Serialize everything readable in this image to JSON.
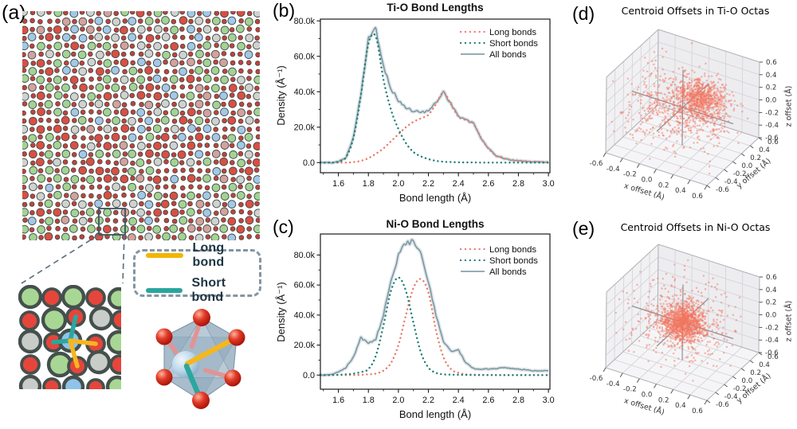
{
  "figure": {
    "panels": {
      "a": {
        "label": "(a)",
        "lattice": {
          "seed": 7,
          "outline": "#3f4a45",
          "oxygen_color": "#c2423c",
          "palette": {
            "green": "#a3d393",
            "red": "#d94f44",
            "gray": "#cfd2cf",
            "blue": "#a3c8e8",
            "pink": "#d3a29e"
          },
          "weights": {
            "green": 0.4,
            "red": 0.22,
            "gray": 0.16,
            "blue": 0.12,
            "pink": 0.1
          }
        },
        "annotations": {
          "zoom_box_color": "#3d545c",
          "connector_color": "#5f7380"
        },
        "inset": {
          "outline": "#45504d",
          "colors": {
            "green": "#a8d795",
            "red": "#e6453c",
            "gray": "#c9cdca",
            "blue": "#8fc3e8"
          },
          "atoms": [
            [
              15,
              15,
              13,
              "green"
            ],
            [
              42,
              16,
              11,
              "red"
            ],
            [
              69,
              15,
              13,
              "green"
            ],
            [
              97,
              16,
              11,
              "red"
            ],
            [
              126,
              17,
              12,
              "green"
            ],
            [
              14,
              45,
              11,
              "red"
            ],
            [
              45,
              44,
              14,
              "green"
            ],
            [
              72,
              40,
              11,
              "red"
            ],
            [
              104,
              42,
              13,
              "gray"
            ],
            [
              129,
              44,
              11,
              "red"
            ],
            [
              15,
              71,
              13,
              "gray"
            ],
            [
              44,
              72,
              11,
              "red"
            ],
            [
              65,
              70,
              13,
              "blue"
            ],
            [
              97,
              74,
              11,
              "red"
            ],
            [
              126,
              72,
              13,
              "green"
            ],
            [
              15,
              100,
              11,
              "red"
            ],
            [
              52,
              100,
              14,
              "green"
            ],
            [
              74,
              102,
              11,
              "red"
            ],
            [
              101,
              97,
              13,
              "gray"
            ],
            [
              127,
              100,
              11,
              "red"
            ],
            [
              15,
              127,
              12,
              "gray"
            ],
            [
              42,
              128,
              10,
              "red"
            ],
            [
              69,
              128,
              12,
              "blue"
            ],
            [
              97,
              129,
              10,
              "red"
            ],
            [
              124,
              128,
              12,
              "green"
            ]
          ],
          "bonds": {
            "short": {
              "color": "#2aa79e",
              "segments": [
                [
                  65,
                  70,
                  72,
                  40
                ],
                [
                  65,
                  70,
                  44,
                  72
                ]
              ]
            },
            "long": {
              "color": "#f4b71e",
              "segments": [
                [
                  65,
                  70,
                  97,
                  74
                ],
                [
                  65,
                  70,
                  74,
                  102
                ]
              ]
            }
          }
        },
        "legend": {
          "items": [
            {
              "label": "Long bond",
              "color": "#f2b600"
            },
            {
              "label": "Short bond",
              "color": "#29a69e"
            }
          ]
        },
        "octahedron": {
          "face_color": "#a9bccb",
          "face_light": "#c6d4df",
          "face_dark": "#8aa5bb",
          "edge_color": "#7490a6",
          "vertex_color": "#e03c28",
          "center_color": "#bcd7ea",
          "stick_pink": "#e29394",
          "stick_blue": "#a9c7e0",
          "long_bond": "#f4b71e",
          "short_bond": "#2aa79e"
        }
      },
      "b": {
        "label": "(b)"
      },
      "c": {
        "label": "(c)"
      },
      "d": {
        "label": "(d)"
      },
      "e": {
        "label": "(e)"
      }
    }
  },
  "chart_data": [
    {
      "id": "b",
      "type": "line",
      "title": "Ti-O Bond Lengths",
      "xlabel": "Bond length (Å)",
      "ylabel": "Density (Å⁻¹)",
      "xlim": [
        1.48,
        3.01
      ],
      "ylim": [
        -5700,
        81000
      ],
      "grid": false,
      "legend_position": "upper right",
      "xticks": [
        1.6,
        1.8,
        2.0,
        2.2,
        2.4,
        2.6,
        2.8,
        3.0
      ],
      "xtick_labels": [
        "1.6",
        "1.8",
        "2.0",
        "2.2",
        "2.4",
        "2.6",
        "2.8",
        "3.0"
      ],
      "yticks": [
        0,
        20000,
        40000,
        60000,
        80000
      ],
      "ytick_labels": [
        "0.0",
        "20.0k",
        "40.0k",
        "60.0k",
        "80.0k"
      ],
      "x": [
        1.5,
        1.55,
        1.6,
        1.65,
        1.7,
        1.75,
        1.8,
        1.85,
        1.9,
        1.95,
        2.0,
        2.05,
        2.1,
        2.15,
        2.2,
        2.25,
        2.3,
        2.35,
        2.4,
        2.45,
        2.5,
        2.55,
        2.6,
        2.65,
        2.7,
        2.75,
        2.8,
        2.85,
        2.9,
        2.95,
        3.0
      ],
      "series": [
        {
          "name": "Long bonds",
          "style": "dotted",
          "color": "#e87c6a",
          "values": [
            0,
            0,
            0,
            0,
            300,
            1000,
            2500,
            5000,
            8000,
            12000,
            16000,
            20000,
            23000,
            25000,
            27000,
            33000,
            39500,
            33000,
            26000,
            24000,
            22000,
            14000,
            8000,
            4000,
            2500,
            1500,
            1000,
            800,
            500,
            400,
            300
          ]
        },
        {
          "name": "Short bonds",
          "style": "dotted",
          "color": "#1f7f78",
          "values": [
            0,
            0,
            500,
            3000,
            14000,
            38000,
            67000,
            71000,
            47000,
            30000,
            19000,
            11000,
            6000,
            3500,
            2000,
            1000,
            500,
            300,
            200,
            100,
            100,
            0,
            0,
            0,
            0,
            0,
            0,
            0,
            0,
            0,
            0
          ]
        },
        {
          "name": "All bonds",
          "style": "solid",
          "color": "#74909e",
          "band_color": "#a9b9c2",
          "values": [
            0,
            0,
            500,
            3000,
            14300,
            39000,
            69500,
            75500,
            55000,
            42000,
            35000,
            31000,
            29000,
            28500,
            29000,
            34000,
            40000,
            33300,
            26200,
            24100,
            22100,
            14000,
            8000,
            4000,
            2500,
            1500,
            1000,
            800,
            500,
            400,
            300
          ]
        }
      ]
    },
    {
      "id": "c",
      "type": "line",
      "title": "Ni-O Bond Lengths",
      "xlabel": "Bond length (Å)",
      "ylabel": "Density (Å⁻¹)",
      "xlim": [
        1.48,
        3.01
      ],
      "ylim": [
        -9400,
        94000
      ],
      "grid": false,
      "legend_position": "upper right",
      "xticks": [
        1.6,
        1.8,
        2.0,
        2.2,
        2.4,
        2.6,
        2.8,
        3.0
      ],
      "xtick_labels": [
        "1.6",
        "1.8",
        "2.0",
        "2.2",
        "2.4",
        "2.6",
        "2.8",
        "3.0"
      ],
      "yticks": [
        0,
        20000,
        40000,
        60000,
        80000
      ],
      "ytick_labels": [
        "0.0",
        "20.0k",
        "40.0k",
        "60.0k",
        "80.0k"
      ],
      "x": [
        1.5,
        1.55,
        1.6,
        1.65,
        1.7,
        1.75,
        1.8,
        1.85,
        1.9,
        1.95,
        2.0,
        2.05,
        2.1,
        2.15,
        2.2,
        2.25,
        2.3,
        2.35,
        2.4,
        2.45,
        2.5,
        2.55,
        2.6,
        2.65,
        2.7,
        2.75,
        2.8,
        2.85,
        2.9,
        2.95,
        3.0
      ],
      "series": [
        {
          "name": "Long bonds",
          "style": "dotted",
          "color": "#e87c6a",
          "values": [
            0,
            0,
            0,
            0,
            0,
            200,
            500,
            1000,
            3000,
            8000,
            20000,
            40000,
            58000,
            64000,
            55000,
            30000,
            12000,
            4000,
            1500,
            500,
            300,
            200,
            100,
            0,
            0,
            0,
            0,
            0,
            0,
            0,
            0
          ]
        },
        {
          "name": "Short bonds",
          "style": "dotted",
          "color": "#1f7f78",
          "values": [
            0,
            0,
            200,
            500,
            1000,
            2000,
            4000,
            13000,
            33000,
            56000,
            65000,
            56000,
            35000,
            15000,
            5000,
            1500,
            500,
            300,
            200,
            100,
            0,
            0,
            0,
            0,
            0,
            0,
            0,
            0,
            0,
            0,
            0
          ]
        },
        {
          "name": "All bonds",
          "style": "solid",
          "color": "#74909e",
          "band_color": "#a9b9c2",
          "values": [
            0,
            500,
            2000,
            5000,
            12000,
            25000,
            21000,
            24000,
            40000,
            62000,
            80000,
            88000,
            89000,
            80000,
            62000,
            40000,
            22000,
            16000,
            16500,
            8000,
            4500,
            4000,
            4000,
            4500,
            5000,
            4500,
            4000,
            3500,
            3000,
            3000,
            3000
          ]
        }
      ]
    },
    {
      "id": "d",
      "type": "scatter3d",
      "title": "Centroid Offsets in Ti-O Octas",
      "xlabel": "x offset (Å)",
      "ylabel": "y offset (Å)",
      "zlabel": "z offset (Å)",
      "xlim": [
        -0.6,
        0.6
      ],
      "ylim": [
        -0.6,
        0.6
      ],
      "zlim": [
        -0.6,
        0.6
      ],
      "ticks": [
        -0.6,
        -0.4,
        -0.2,
        0.0,
        0.2,
        0.4,
        0.6
      ],
      "tick_labels": [
        "-0.6",
        "-0.4",
        "-0.2",
        "0.0",
        "0.2",
        "0.4",
        "0.6"
      ],
      "point_color": "#f4765f",
      "seed": 11,
      "clusters": [
        {
          "n": 700,
          "center": [
            0.05,
            0.33,
            -0.05
          ],
          "sigma": [
            0.14,
            0.12,
            0.14
          ]
        },
        {
          "n": 600,
          "center": [
            -0.1,
            0.0,
            -0.08
          ],
          "sigma": [
            0.33,
            0.28,
            0.28
          ]
        }
      ]
    },
    {
      "id": "e",
      "type": "scatter3d",
      "title": "Centroid Offsets in Ni-O Octas",
      "xlabel": "x offset (Å)",
      "ylabel": "y offset (Å)",
      "zlabel": "z offset (Å)",
      "xlim": [
        -0.6,
        0.6
      ],
      "ylim": [
        -0.6,
        0.6
      ],
      "zlim": [
        -0.6,
        0.6
      ],
      "ticks": [
        -0.6,
        -0.4,
        -0.2,
        0.0,
        0.2,
        0.4,
        0.6
      ],
      "tick_labels": [
        "-0.6",
        "-0.4",
        "-0.2",
        "0.0",
        "0.2",
        "0.4",
        "0.6"
      ],
      "point_color": "#f4765f",
      "seed": 23,
      "clusters": [
        {
          "n": 1000,
          "center": [
            0,
            0,
            0
          ],
          "sigma": [
            0.11,
            0.11,
            0.12
          ]
        },
        {
          "n": 480,
          "center": [
            0,
            0,
            0
          ],
          "sigma": [
            0.3,
            0.3,
            0.3
          ]
        }
      ]
    }
  ]
}
